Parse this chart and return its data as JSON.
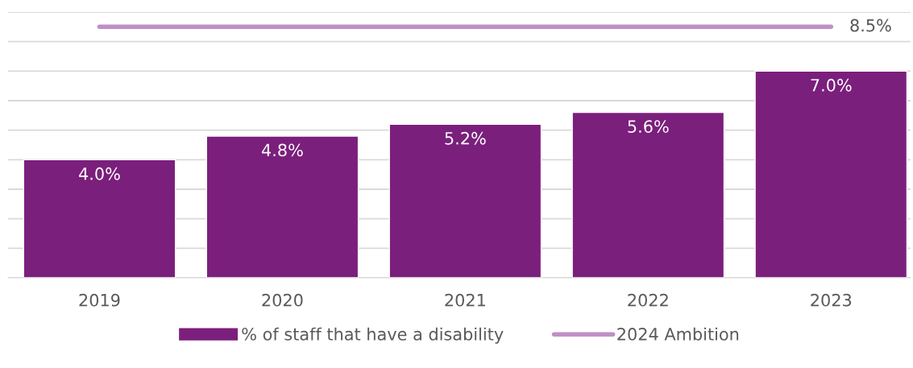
{
  "chart_data": {
    "type": "bar",
    "categories": [
      "2019",
      "2020",
      "2021",
      "2022",
      "2023"
    ],
    "series": [
      {
        "name": "% of staff that have a disability",
        "color": "#7b1f7c",
        "values": [
          4.0,
          4.8,
          5.2,
          5.6,
          7.0
        ],
        "value_labels": [
          "4.0%",
          "4.8%",
          "5.2%",
          "5.6%",
          "7.0%"
        ]
      },
      {
        "name": "2024 Ambition",
        "type": "line",
        "color": "#c08fc6",
        "values": [
          8.5,
          8.5,
          8.5,
          8.5,
          8.5
        ],
        "value_labels": [
          null,
          null,
          null,
          null,
          "8.5%"
        ]
      }
    ],
    "ylim": [
      0,
      9
    ],
    "yticks": [
      {
        "value": 0,
        "label": null
      },
      {
        "value": 1,
        "label": null
      },
      {
        "value": 2,
        "label": null
      },
      {
        "value": 3,
        "label": null
      },
      {
        "value": 4,
        "label": null
      },
      {
        "value": 5,
        "label": null
      },
      {
        "value": 6,
        "label": null
      },
      {
        "value": 7,
        "label": null
      },
      {
        "value": 8,
        "label": null
      },
      {
        "value": 9,
        "label": null
      }
    ],
    "tick_labels": "x",
    "grid": "y",
    "legend": "bottom",
    "marker": "none",
    "line_style": "solid"
  }
}
